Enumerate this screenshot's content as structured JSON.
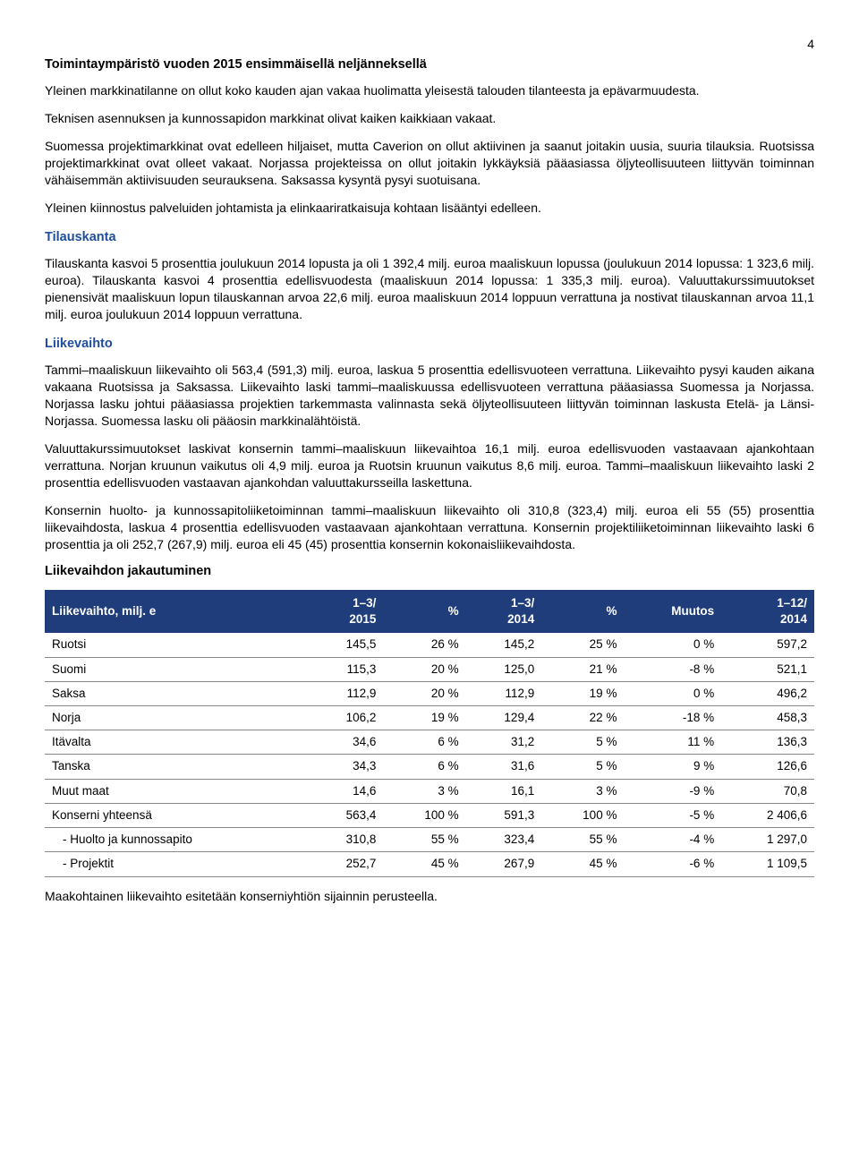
{
  "page_number": "4",
  "title": "Toimintaympäristö vuoden 2015 ensimmäisellä neljänneksellä",
  "para1": "Yleinen markkinatilanne on ollut koko kauden ajan vakaa huolimatta yleisestä talouden tilanteesta ja epävarmuudesta.",
  "para2": "Teknisen asennuksen ja kunnossapidon markkinat olivat kaiken kaikkiaan vakaat.",
  "para3": "Suomessa projektimarkkinat ovat edelleen hiljaiset, mutta Caverion on ollut aktiivinen ja saanut joitakin uusia, suuria tilauksia. Ruotsissa projektimarkkinat ovat olleet vakaat. Norjassa projekteissa on ollut joitakin lykkäyksiä pääasiassa öljyteollisuuteen liittyvän toiminnan vähäisemmän aktiivisuuden seurauksena. Saksassa kysyntä pysyi suotuisana.",
  "para4": "Yleinen kiinnostus palveluiden johtamista ja elinkaariratkaisuja kohtaan lisääntyi edelleen.",
  "section_tilauskanta": "Tilauskanta",
  "tilauskanta_para": "Tilauskanta kasvoi 5 prosenttia joulukuun 2014 lopusta ja oli 1 392,4 milj. euroa maaliskuun lopussa (joulukuun 2014 lopussa: 1 323,6 milj. euroa). Tilauskanta kasvoi 4 prosenttia edellisvuodesta (maaliskuun 2014 lopussa: 1 335,3 milj. euroa). Valuuttakurssimuutokset pienensivät maaliskuun lopun tilauskannan arvoa 22,6 milj. euroa maaliskuun 2014 loppuun verrattuna ja nostivat tilauskannan arvoa 11,1 milj. euroa joulukuun 2014 loppuun verrattuna.",
  "section_liikevaihto": "Liikevaihto",
  "liikevaihto_para1": "Tammi–maaliskuun liikevaihto oli 563,4 (591,3) milj. euroa, laskua 5 prosenttia edellisvuoteen verrattuna. Liikevaihto pysyi kauden aikana vakaana Ruotsissa ja Saksassa. Liikevaihto laski tammi–maaliskuussa edellisvuoteen verrattuna pääasiassa Suomessa ja Norjassa. Norjassa lasku johtui pääasiassa projektien tarkemmasta valinnasta sekä öljyteollisuuteen liittyvän toiminnan laskusta Etelä- ja Länsi-Norjassa. Suomessa lasku oli pääosin markkinalähtöistä.",
  "liikevaihto_para2": "Valuuttakurssimuutokset laskivat konsernin tammi–maaliskuun liikevaihtoa 16,1 milj. euroa edellisvuoden vastaavaan ajankohtaan verrattuna. Norjan kruunun vaikutus oli 4,9 milj. euroa ja Ruotsin kruunun vaikutus 8,6 milj. euroa. Tammi–maaliskuun liikevaihto laski 2 prosenttia edellisvuoden vastaavan ajankohdan valuuttakursseilla laskettuna.",
  "liikevaihto_para3": "Konsernin huolto- ja kunnossapitoliiketoiminnan tammi–maaliskuun liikevaihto oli 310,8 (323,4) milj. euroa eli 55 (55) prosenttia liikevaihdosta, laskua 4 prosenttia edellisvuoden vastaavaan ajankohtaan verrattuna. Konsernin projektiliiketoiminnan liikevaihto laski 6 prosenttia ja oli 252,7 (267,9) milj. euroa eli 45 (45) prosenttia konsernin kokonaisliikevaihdosta.",
  "table_heading": "Liikevaihdon jakautuminen",
  "table": {
    "header_bg": "#1f3d7a",
    "header_fg": "#ffffff",
    "columns": [
      "Liikevaihto, milj. e",
      "1–3/\n2015",
      "%",
      "1–3/\n2014",
      "%",
      "Muutos",
      "1–12/\n2014"
    ],
    "rows": [
      {
        "label": "Ruotsi",
        "c1": "145,5",
        "c2": "26 %",
        "c3": "145,2",
        "c4": "25 %",
        "c5": "0 %",
        "c6": "597,2"
      },
      {
        "label": "Suomi",
        "c1": "115,3",
        "c2": "20 %",
        "c3": "125,0",
        "c4": "21 %",
        "c5": "-8 %",
        "c6": "521,1"
      },
      {
        "label": "Saksa",
        "c1": "112,9",
        "c2": "20 %",
        "c3": "112,9",
        "c4": "19 %",
        "c5": "0 %",
        "c6": "496,2"
      },
      {
        "label": "Norja",
        "c1": "106,2",
        "c2": "19 %",
        "c3": "129,4",
        "c4": "22 %",
        "c5": "-18 %",
        "c6": "458,3"
      },
      {
        "label": "Itävalta",
        "c1": "34,6",
        "c2": "6 %",
        "c3": "31,2",
        "c4": "5 %",
        "c5": "11 %",
        "c6": "136,3"
      },
      {
        "label": "Tanska",
        "c1": "34,3",
        "c2": "6 %",
        "c3": "31,6",
        "c4": "5 %",
        "c5": "9 %",
        "c6": "126,6"
      },
      {
        "label": "Muut maat",
        "c1": "14,6",
        "c2": "3 %",
        "c3": "16,1",
        "c4": "3 %",
        "c5": "-9 %",
        "c6": "70,8"
      },
      {
        "label": "Konserni yhteensä",
        "c1": "563,4",
        "c2": "100 %",
        "c3": "591,3",
        "c4": "100 %",
        "c5": "-5 %",
        "c6": "2 406,6"
      },
      {
        "label": "-   Huolto ja kunnossapito",
        "c1": "310,8",
        "c2": "55 %",
        "c3": "323,4",
        "c4": "55 %",
        "c5": "-4 %",
        "c6": "1 297,0",
        "sub": true
      },
      {
        "label": "-   Projektit",
        "c1": "252,7",
        "c2": "45 %",
        "c3": "267,9",
        "c4": "45 %",
        "c5": "-6 %",
        "c6": "1 109,5",
        "sub": true
      }
    ]
  },
  "footnote": "Maakohtainen liikevaihto esitetään konserniyhtiön sijainnin perusteella."
}
